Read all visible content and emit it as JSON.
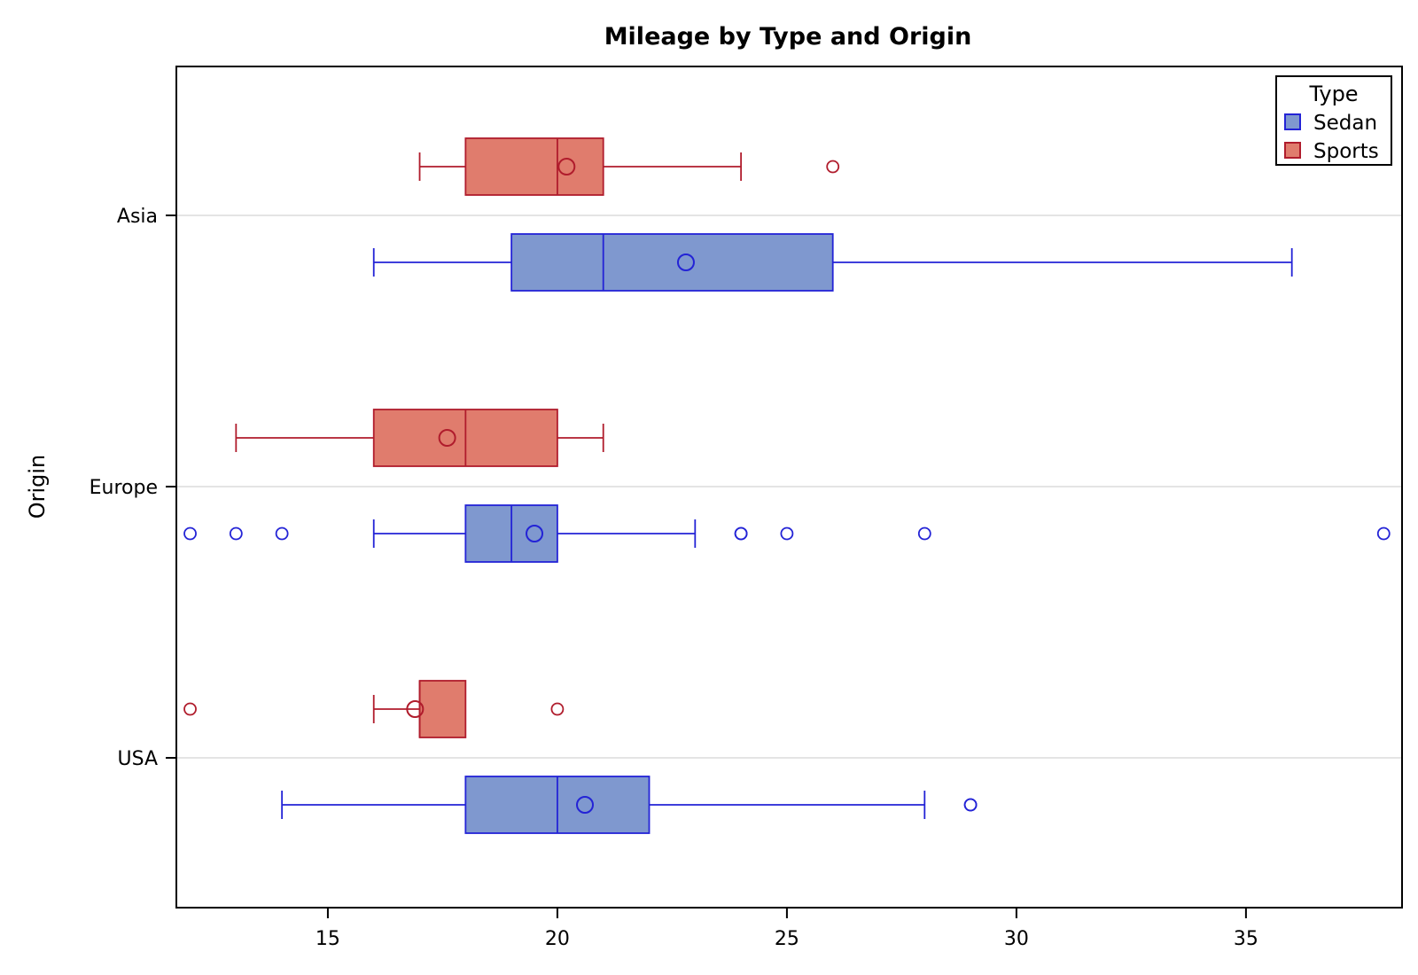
{
  "chart_data": {
    "type": "boxplot",
    "orientation": "horizontal",
    "title": "Mileage by Type and Origin",
    "xlabel": "",
    "ylabel": "Origin",
    "xlim": [
      11.7,
      38.4
    ],
    "x_ticks": [
      15,
      20,
      25,
      30,
      35
    ],
    "categories": [
      "Asia",
      "Europe",
      "USA"
    ],
    "grid": "horizontal lines at category ticks",
    "legend": {
      "title": "Type",
      "placement": "top-right",
      "entries": [
        "Sedan",
        "Sports"
      ]
    },
    "colors": {
      "Sedan": {
        "fill": "#7f98cf",
        "line": "#2323d6"
      },
      "Sports": {
        "fill": "#e07c6d",
        "line": "#b01c2c"
      },
      "grid": "#dcdcdc"
    },
    "series": [
      {
        "name": "Sedan",
        "boxes": [
          {
            "category": "Asia",
            "whisker_low": 16,
            "q1": 19,
            "median": 21,
            "q3": 26,
            "whisker_high": 36,
            "mean": 22.8,
            "outliers": []
          },
          {
            "category": "Europe",
            "whisker_low": 16,
            "q1": 18,
            "median": 19,
            "q3": 20,
            "whisker_high": 23,
            "mean": 19.5,
            "outliers": [
              12,
              13,
              14,
              24,
              24,
              25,
              28,
              38
            ]
          },
          {
            "category": "USA",
            "whisker_low": 14,
            "q1": 18,
            "median": 20,
            "q3": 22,
            "whisker_high": 28,
            "mean": 20.6,
            "outliers": [
              29,
              29
            ]
          }
        ]
      },
      {
        "name": "Sports",
        "boxes": [
          {
            "category": "Asia",
            "whisker_low": 17,
            "q1": 18,
            "median": 20,
            "q3": 21,
            "whisker_high": 24,
            "mean": 20.2,
            "outliers": [
              26
            ]
          },
          {
            "category": "Europe",
            "whisker_low": 13,
            "q1": 16,
            "median": 18,
            "q3": 20,
            "whisker_high": 21,
            "mean": 17.6,
            "outliers": []
          },
          {
            "category": "USA",
            "whisker_low": 16,
            "q1": 17,
            "median": 17,
            "q3": 18,
            "whisker_high": 18,
            "mean": 16.9,
            "outliers": [
              12,
              20
            ]
          }
        ]
      }
    ]
  }
}
